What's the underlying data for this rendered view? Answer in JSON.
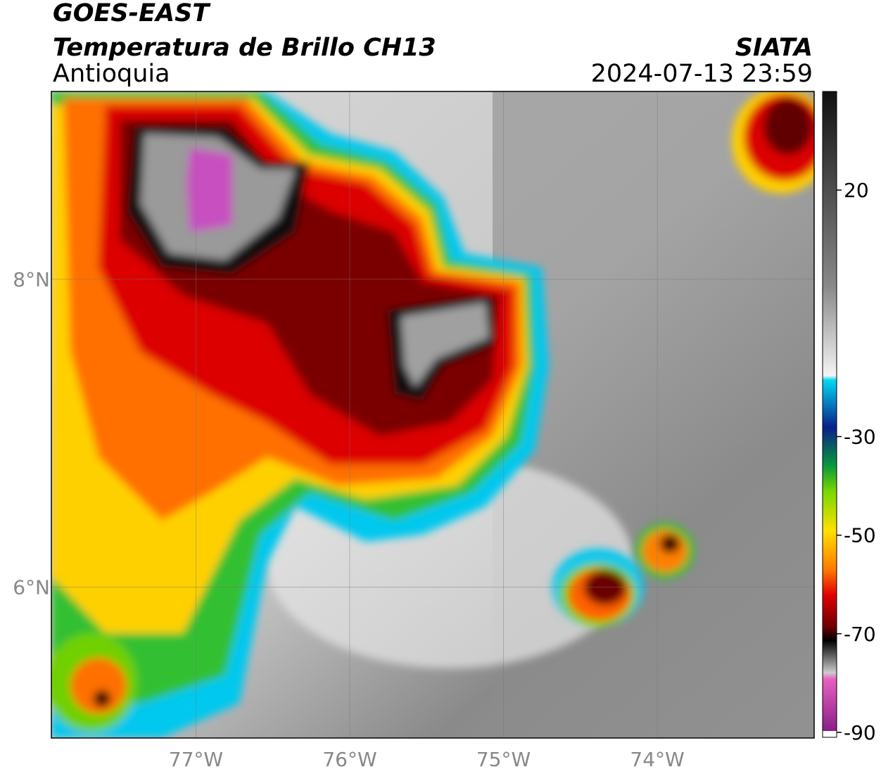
{
  "header": {
    "satellite": "GOES-EAST",
    "title": "Temperatura de Brillo CH13",
    "region": "Antioquia",
    "source": "SIATA",
    "datetime": "2024-07-13 23:59"
  },
  "map": {
    "xlim": [
      -77.94,
      -72.98
    ],
    "ylim": [
      5.02,
      9.22
    ],
    "xticks": [
      {
        "value": -77,
        "label": "77°W"
      },
      {
        "value": -76,
        "label": "76°W"
      },
      {
        "value": -75,
        "label": "75°W"
      },
      {
        "value": -74,
        "label": "74°W"
      }
    ],
    "yticks": [
      {
        "value": 8,
        "label": "8°N"
      },
      {
        "value": 6,
        "label": "6°N"
      }
    ]
  },
  "colorbar": {
    "lim": [
      -91,
      40
    ],
    "ticks": [
      20,
      -30,
      -50,
      -70,
      -90
    ]
  }
}
